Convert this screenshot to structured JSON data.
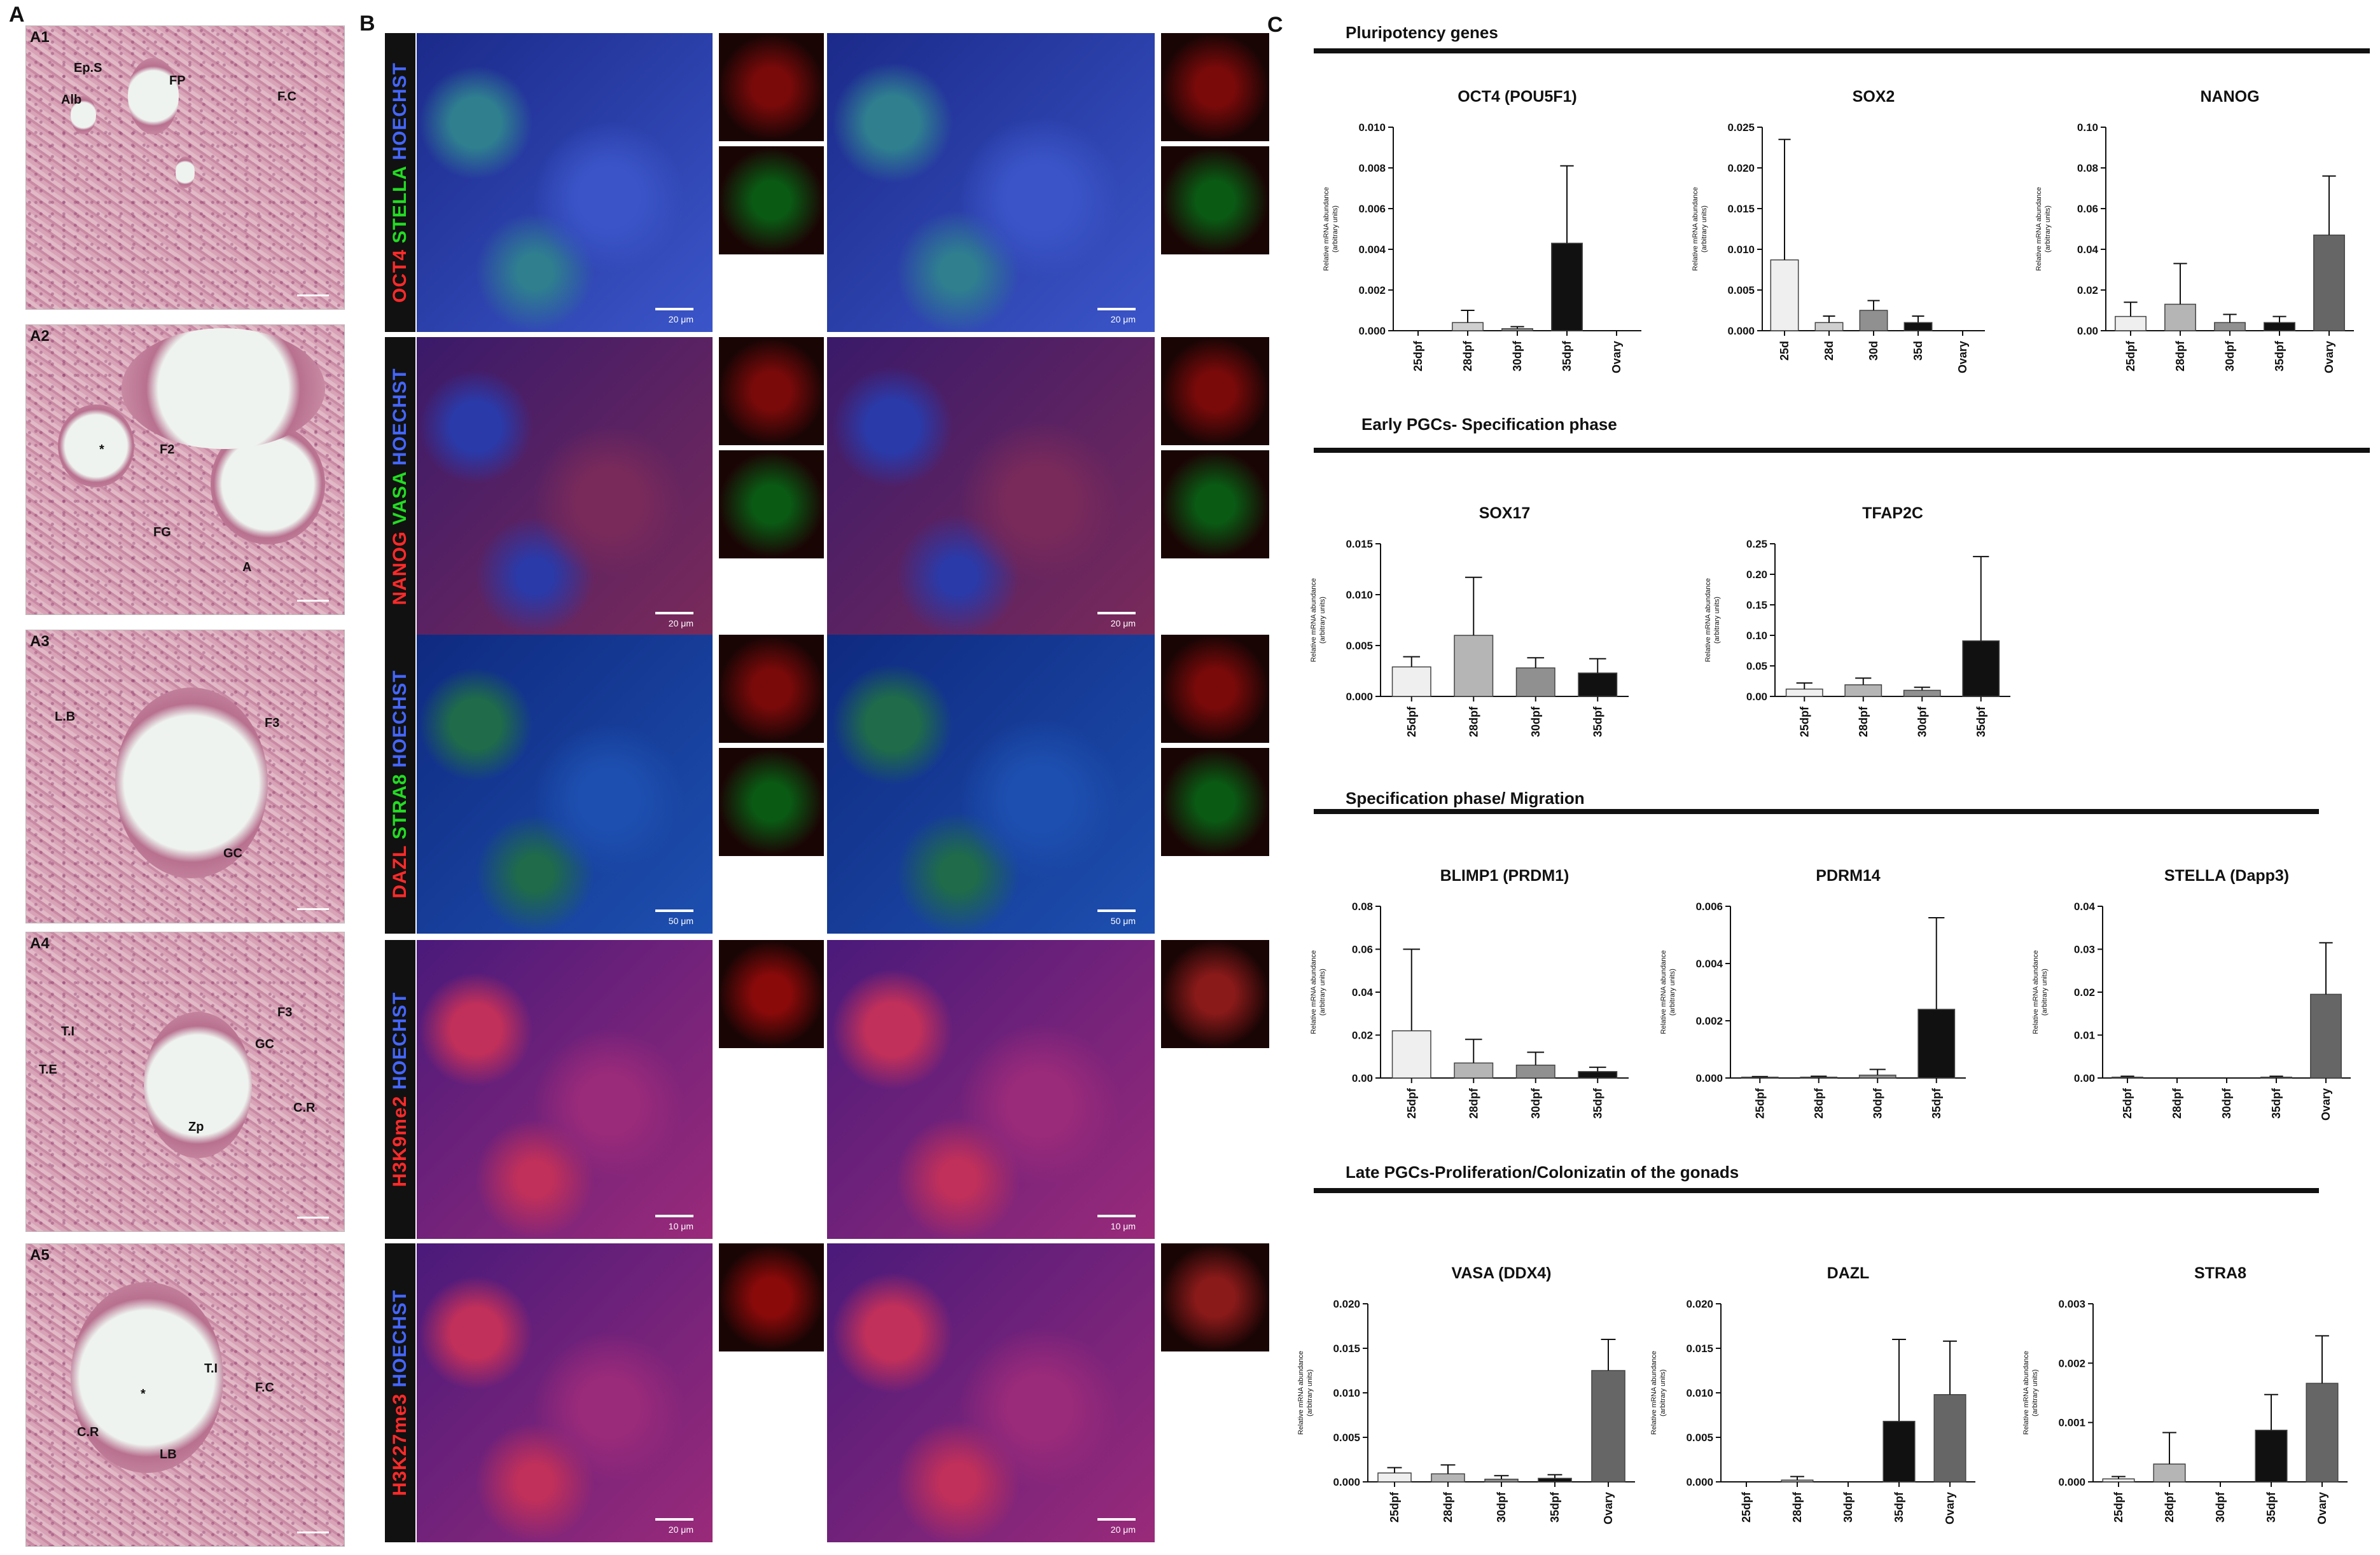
{
  "panels": {
    "a": "A",
    "b": "B",
    "c": "C"
  },
  "he_panels": [
    {
      "id": "A1",
      "labels": [
        "Ep.S",
        "FP",
        "Alb",
        "F.C"
      ]
    },
    {
      "id": "A2",
      "labels": [
        "*",
        "F2",
        "FG",
        "A"
      ]
    },
    {
      "id": "A3",
      "labels": [
        "L.B",
        "F3",
        "GC"
      ]
    },
    {
      "id": "A4",
      "labels": [
        "T.I",
        "F3",
        "GC",
        "T.E",
        "Zp",
        "C.R"
      ]
    },
    {
      "id": "A5",
      "labels": [
        "T.I",
        "*",
        "F.C",
        "C.R",
        "LB"
      ]
    }
  ],
  "fluorescence_rows": [
    {
      "parts": [
        {
          "text": "OCT4 ",
          "color": "#ff2a2a"
        },
        {
          "text": "STELLA ",
          "color": "#22dd22"
        },
        {
          "text": "HOECHST",
          "color": "#4466ff"
        }
      ],
      "tint": "blue",
      "scale": "20 μm"
    },
    {
      "parts": [
        {
          "text": "NANOG ",
          "color": "#ff2a2a"
        },
        {
          "text": "VASA ",
          "color": "#22dd22"
        },
        {
          "text": "HOECHST",
          "color": "#4466ff"
        }
      ],
      "tint": "blue-red",
      "scale": "20 μm"
    },
    {
      "parts": [
        {
          "text": "DAZL ",
          "color": "#ff2a2a"
        },
        {
          "text": "STRA8 ",
          "color": "#22dd22"
        },
        {
          "text": "HOECHST",
          "color": "#4466ff"
        }
      ],
      "tint": "blue-green",
      "scale": "50 μm"
    },
    {
      "parts": [
        {
          "text": "H3K9me2 ",
          "color": "#ff2a2a"
        },
        {
          "text": "HOECHST",
          "color": "#4466ff"
        }
      ],
      "tint": "magenta",
      "scale": "10 μm"
    },
    {
      "parts": [
        {
          "text": "H3K27me3 ",
          "color": "#ff2a2a"
        },
        {
          "text": "HOECHST",
          "color": "#4466ff"
        }
      ],
      "tint": "magenta",
      "scale": "20 μm"
    }
  ],
  "sections": [
    "Pluripotency genes",
    "Early PGCs- Specification phase",
    "Specification  phase/ Migration",
    "Late PGCs-Proliferation/Colonizatin of the gonads"
  ],
  "ylabel_lines": [
    "Relative mRNA abundance",
    "(arbitrary units)"
  ],
  "chart_data": [
    {
      "type": "bar",
      "title": "OCT4 (POU5F1)",
      "categories": [
        "25dpf",
        "28dpf",
        "30dpf",
        "35dpf",
        "Ovary"
      ],
      "values": [
        0.0,
        0.0004,
        0.0001,
        0.0043,
        0.0
      ],
      "errors": [
        0.0,
        0.0006,
        0.0001,
        0.0038,
        0.0
      ],
      "yticks": [
        "0.000",
        "0.002",
        "0.004",
        "0.006",
        "0.008",
        "0.010"
      ],
      "ylim": [
        0,
        0.01
      ],
      "colors": [
        "#efefef",
        "#cfcfcf",
        "#909090",
        "#111111",
        "#666666"
      ]
    },
    {
      "type": "bar",
      "title": "SOX2",
      "categories": [
        "25d",
        "28d",
        "30d",
        "35d",
        "Ovary"
      ],
      "values": [
        0.0087,
        0.001,
        0.0025,
        0.001,
        0.0
      ],
      "errors": [
        0.0148,
        0.0008,
        0.0012,
        0.0008,
        0.0
      ],
      "yticks": [
        "0.000",
        "0.005",
        "0.010",
        "0.015",
        "0.020",
        "0.025"
      ],
      "ylim": [
        0,
        0.025
      ],
      "colors": [
        "#efefef",
        "#cfcfcf",
        "#909090",
        "#111111",
        "#666666"
      ]
    },
    {
      "type": "bar",
      "title": "NANOG",
      "categories": [
        "25dpf",
        "28dpf",
        "30dpf",
        "35dpf",
        "Ovary"
      ],
      "values": [
        0.007,
        0.013,
        0.004,
        0.004,
        0.047
      ],
      "errors": [
        0.007,
        0.02,
        0.004,
        0.003,
        0.029
      ],
      "yticks": [
        "0.00",
        "0.02",
        "0.04",
        "0.06",
        "0.08",
        "0.10"
      ],
      "ylim": [
        0,
        0.1
      ],
      "colors": [
        "#efefef",
        "#b5b5b5",
        "#909090",
        "#111111",
        "#666666"
      ]
    },
    {
      "type": "bar",
      "title": "SOX17",
      "categories": [
        "25dpf",
        "28dpf",
        "30dpf",
        "35dpf"
      ],
      "values": [
        0.0029,
        0.006,
        0.0028,
        0.0023
      ],
      "errors": [
        0.001,
        0.0057,
        0.001,
        0.0014
      ],
      "yticks": [
        "0.000",
        "0.005",
        "0.010",
        "0.015"
      ],
      "ylim": [
        0,
        0.015
      ],
      "colors": [
        "#efefef",
        "#b5b5b5",
        "#909090",
        "#111111"
      ]
    },
    {
      "type": "bar",
      "title": "TFAP2C",
      "categories": [
        "25dpf",
        "28dpf",
        "30dpf",
        "35dpf"
      ],
      "values": [
        0.012,
        0.019,
        0.01,
        0.091
      ],
      "errors": [
        0.01,
        0.011,
        0.005,
        0.138
      ],
      "yticks": [
        "0.00",
        "0.05",
        "0.10",
        "0.15",
        "0.20",
        "0.25"
      ],
      "ylim": [
        0,
        0.25
      ],
      "colors": [
        "#efefef",
        "#b5b5b5",
        "#909090",
        "#111111"
      ]
    },
    {
      "type": "bar",
      "title": "BLIMP1 (PRDM1)",
      "categories": [
        "25dpf",
        "28dpf",
        "30dpf",
        "35dpf"
      ],
      "values": [
        0.022,
        0.007,
        0.006,
        0.003
      ],
      "errors": [
        0.038,
        0.011,
        0.006,
        0.002
      ],
      "yticks": [
        "0.00",
        "0.02",
        "0.04",
        "0.06",
        "0.08"
      ],
      "ylim": [
        0,
        0.08
      ],
      "colors": [
        "#efefef",
        "#b5b5b5",
        "#909090",
        "#111111"
      ]
    },
    {
      "type": "bar",
      "title": "PDRM14",
      "categories": [
        "25dpf",
        "28dpf",
        "30dpf",
        "35dpf"
      ],
      "values": [
        3e-05,
        3e-05,
        0.0001,
        0.0024
      ],
      "errors": [
        2e-05,
        3e-05,
        0.0002,
        0.0032
      ],
      "yticks": [
        "0.000",
        "0.002",
        "0.004",
        "0.006"
      ],
      "ylim": [
        0,
        0.006
      ],
      "colors": [
        "#efefef",
        "#b5b5b5",
        "#909090",
        "#111111"
      ]
    },
    {
      "type": "bar",
      "title": "STELLA (Dapp3)",
      "categories": [
        "25dpf",
        "28dpf",
        "30dpf",
        "35dpf",
        "Ovary"
      ],
      "values": [
        0.0002,
        0.0,
        0.0,
        0.0002,
        0.0195
      ],
      "errors": [
        0.0002,
        0.0,
        0.0,
        0.0002,
        0.012
      ],
      "yticks": [
        "0.00",
        "0.01",
        "0.02",
        "0.03",
        "0.04"
      ],
      "ylim": [
        0,
        0.04
      ],
      "colors": [
        "#efefef",
        "#b5b5b5",
        "#909090",
        "#111111",
        "#666666"
      ]
    },
    {
      "type": "bar",
      "title": "VASA (DDX4)",
      "categories": [
        "25dpf",
        "28dpf",
        "30dpf",
        "35dpf",
        "Ovary"
      ],
      "values": [
        0.001,
        0.0009,
        0.0003,
        0.0004,
        0.0125
      ],
      "errors": [
        0.0006,
        0.001,
        0.0004,
        0.0004,
        0.0035
      ],
      "yticks": [
        "0.000",
        "0.005",
        "0.010",
        "0.015",
        "0.020"
      ],
      "ylim": [
        0,
        0.02
      ],
      "colors": [
        "#efefef",
        "#b5b5b5",
        "#909090",
        "#111111",
        "#666666"
      ]
    },
    {
      "type": "bar",
      "title": "DAZL",
      "categories": [
        "25dpf",
        "28dpf",
        "30dpf",
        "35dpf",
        "Ovary"
      ],
      "values": [
        0.0,
        0.0002,
        0.0,
        0.0068,
        0.0098
      ],
      "errors": [
        0.0,
        0.0004,
        0.0,
        0.0092,
        0.006
      ],
      "yticks": [
        "0.000",
        "0.005",
        "0.010",
        "0.015",
        "0.020"
      ],
      "ylim": [
        0,
        0.02
      ],
      "colors": [
        "#efefef",
        "#b5b5b5",
        "#909090",
        "#111111",
        "#666666"
      ]
    },
    {
      "type": "bar",
      "title": "STRA8",
      "categories": [
        "25dpf",
        "28dpf",
        "30dpf",
        "35dpf",
        "Ovary"
      ],
      "values": [
        5e-05,
        0.0003,
        0.0,
        0.00087,
        0.00166
      ],
      "errors": [
        4e-05,
        0.00053,
        0.0,
        0.0006,
        0.0008
      ],
      "yticks": [
        "0.000",
        "0.001",
        "0.002",
        "0.003"
      ],
      "ylim": [
        0,
        0.003
      ],
      "colors": [
        "#efefef",
        "#b5b5b5",
        "#909090",
        "#111111",
        "#666666"
      ]
    }
  ]
}
